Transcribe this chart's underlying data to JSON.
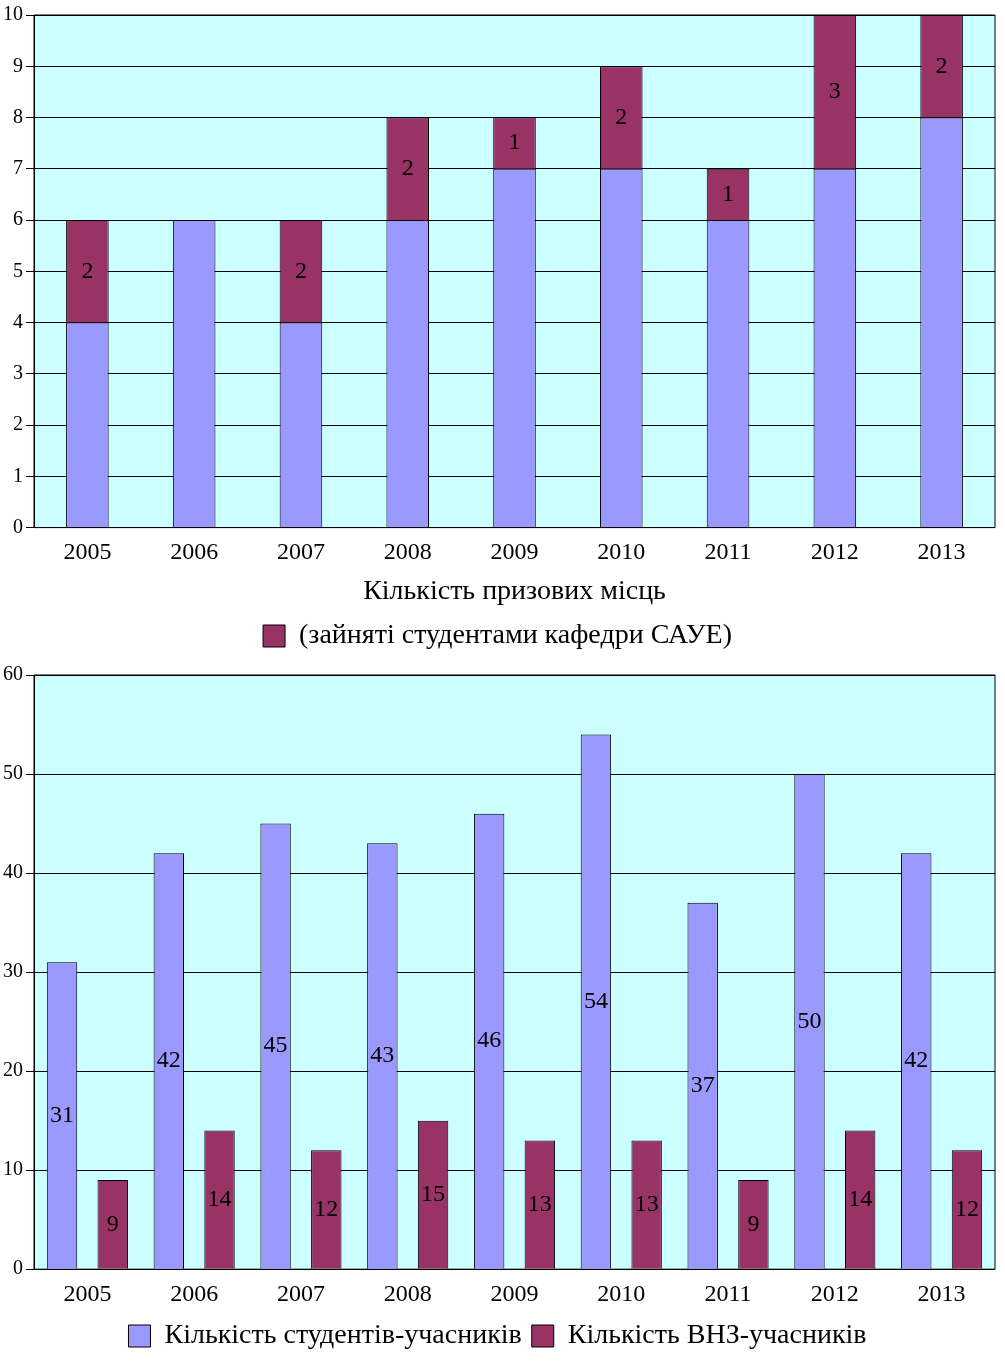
{
  "chart_data": [
    {
      "type": "bar",
      "stacked": true,
      "xlabel": "Кількість призових місць",
      "categories": [
        "2005",
        "2006",
        "2007",
        "2008",
        "2009",
        "2010",
        "2011",
        "2012",
        "2013"
      ],
      "series": [
        {
          "color": "#9999ff",
          "values": [
            4,
            6,
            4,
            6,
            7,
            7,
            6,
            7,
            8
          ]
        },
        {
          "name": "(зайняті студентами кафедри САУЕ)",
          "color": "#993366",
          "values": [
            2,
            0,
            2,
            2,
            1,
            2,
            1,
            3,
            2
          ],
          "value_labels": [
            "2",
            null,
            "2",
            "2",
            "1",
            "2",
            "1",
            "3",
            "2"
          ]
        }
      ],
      "ylim": [
        0,
        10
      ],
      "yticks": [
        0,
        1,
        2,
        3,
        4,
        5,
        6,
        7,
        8,
        9,
        10
      ],
      "grid": "y",
      "legend": "bottom"
    },
    {
      "type": "bar",
      "categories": [
        "2005",
        "2006",
        "2007",
        "2008",
        "2009",
        "2010",
        "2011",
        "2012",
        "2013"
      ],
      "series": [
        {
          "name": "Кількість студентів-учасників",
          "color": "#9999ff",
          "values": [
            31,
            42,
            45,
            43,
            46,
            54,
            37,
            50,
            42
          ]
        },
        {
          "name": "Кількість ВНЗ-учасників",
          "color": "#993366",
          "values": [
            9,
            14,
            12,
            15,
            13,
            13,
            9,
            14,
            12
          ]
        }
      ],
      "ylim": [
        0,
        60
      ],
      "yticks": [
        0,
        10,
        20,
        30,
        40,
        50,
        60
      ],
      "grid": "y",
      "legend": "bottom",
      "data_labels": true
    }
  ]
}
